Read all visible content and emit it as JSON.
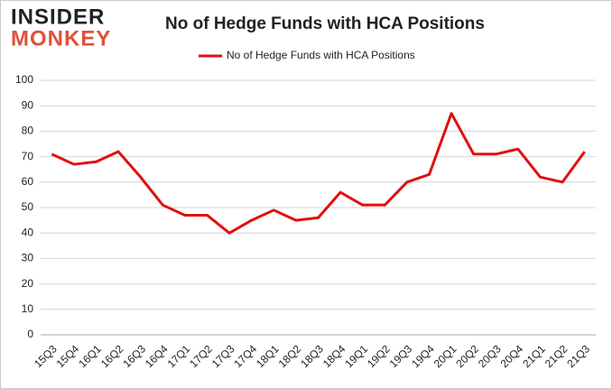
{
  "logo": {
    "line1": "INSIDER",
    "line2": "MONKEY"
  },
  "chart_data": {
    "type": "line",
    "title": "No of Hedge Funds with HCA Positions",
    "categories": [
      "15Q3",
      "15Q4",
      "16Q1",
      "16Q2",
      "16Q3",
      "16Q4",
      "17Q1",
      "17Q2",
      "17Q3",
      "17Q4",
      "18Q1",
      "18Q2",
      "18Q3",
      "18Q4",
      "19Q1",
      "19Q2",
      "19Q3",
      "19Q4",
      "20Q1",
      "20Q2",
      "20Q3",
      "20Q4",
      "21Q1",
      "21Q2",
      "21Q3"
    ],
    "series": [
      {
        "name": "No of Hedge Funds with HCA Positions",
        "color": "#e01010",
        "values": [
          71,
          67,
          68,
          72,
          62,
          51,
          47,
          47,
          40,
          45,
          49,
          45,
          46,
          56,
          51,
          51,
          60,
          63,
          87,
          71,
          71,
          73,
          62,
          60,
          72
        ]
      }
    ],
    "ylim": [
      0,
      100
    ],
    "yticks": [
      0,
      10,
      20,
      30,
      40,
      50,
      60,
      70,
      80,
      90,
      100
    ],
    "grid": true,
    "legend": "top"
  }
}
